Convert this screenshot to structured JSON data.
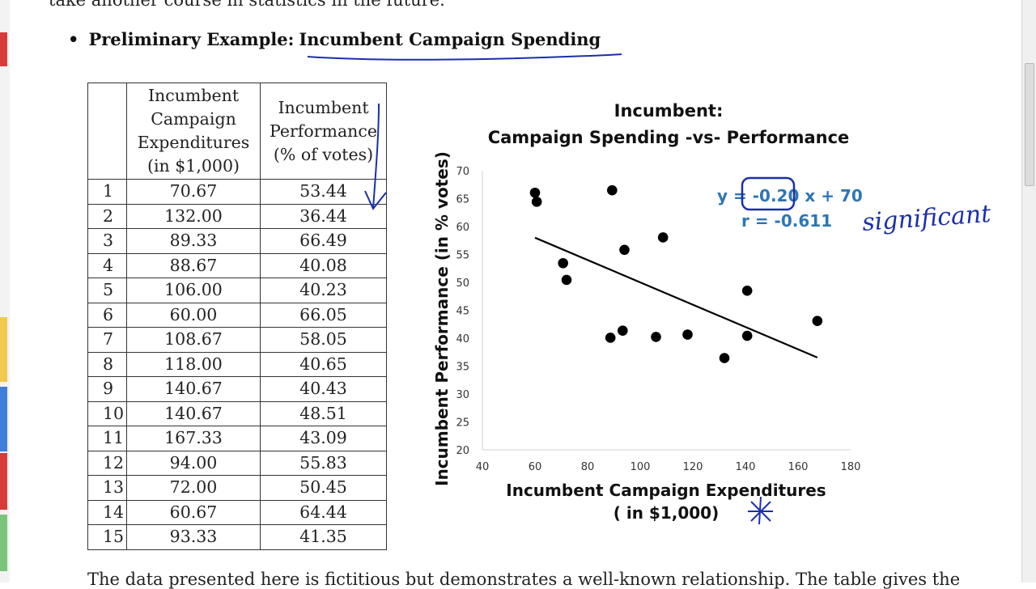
{
  "document": {
    "top_fragment": "take another course in statistics in the future.",
    "heading_label": "Preliminary Example:",
    "heading_topic": "Incumbent Campaign Spending",
    "bottom_fragment": "The data presented here is fictitious but demonstrates a well-known relationship. The table gives the"
  },
  "table": {
    "headers": {
      "index": "",
      "expenditures": [
        "Incumbent",
        "Campaign",
        "Expenditures",
        "(in $1,000)"
      ],
      "performance": [
        "Incumbent",
        "Performance",
        "(% of votes)"
      ]
    },
    "rows": [
      {
        "n": "1",
        "exp": "70.67",
        "perf": "53.44"
      },
      {
        "n": "2",
        "exp": "132.00",
        "perf": "36.44"
      },
      {
        "n": "3",
        "exp": "89.33",
        "perf": "66.49"
      },
      {
        "n": "4",
        "exp": "88.67",
        "perf": "40.08"
      },
      {
        "n": "5",
        "exp": "106.00",
        "perf": "40.23"
      },
      {
        "n": "6",
        "exp": "60.00",
        "perf": "66.05"
      },
      {
        "n": "7",
        "exp": "108.67",
        "perf": "58.05"
      },
      {
        "n": "8",
        "exp": "118.00",
        "perf": "40.65"
      },
      {
        "n": "9",
        "exp": "140.67",
        "perf": "40.43"
      },
      {
        "n": "10",
        "exp": "140.67",
        "perf": "48.51"
      },
      {
        "n": "11",
        "exp": "167.33",
        "perf": "43.09"
      },
      {
        "n": "12",
        "exp": "94.00",
        "perf": "55.83"
      },
      {
        "n": "13",
        "exp": "72.00",
        "perf": "50.45"
      },
      {
        "n": "14",
        "exp": "60.67",
        "perf": "64.44"
      },
      {
        "n": "15",
        "exp": "93.33",
        "perf": "41.35"
      }
    ]
  },
  "annotations": {
    "handwritten_word": "significant"
  },
  "colors": {
    "ink": "#1b2fa8",
    "equation": "#2e75b6",
    "points": "#000000"
  },
  "chart_data": {
    "type": "scatter",
    "title_lines": [
      "Incumbent:",
      "Campaign Spending -vs- Performance"
    ],
    "xlabel_lines": [
      "Incumbent Campaign Expenditures",
      "( in $1,000)"
    ],
    "ylabel": "Incumbent  Performance  (in % votes)",
    "xlim": [
      40,
      180
    ],
    "ylim": [
      20,
      70
    ],
    "xticks": [
      40,
      60,
      80,
      100,
      120,
      140,
      160,
      180
    ],
    "yticks": [
      20,
      25,
      30,
      35,
      40,
      45,
      50,
      55,
      60,
      65,
      70
    ],
    "x": [
      70.67,
      132.0,
      89.33,
      88.67,
      106.0,
      60.0,
      108.67,
      118.0,
      140.67,
      140.67,
      167.33,
      94.0,
      72.0,
      60.67,
      93.33
    ],
    "y": [
      53.44,
      36.44,
      66.49,
      40.08,
      40.23,
      66.05,
      58.05,
      40.65,
      40.43,
      48.51,
      43.09,
      55.83,
      50.45,
      64.44,
      41.35
    ],
    "trendline": {
      "slope": -0.2,
      "intercept": 70,
      "x_from": 60,
      "x_to": 167.33
    },
    "equation_parts": [
      "y = ",
      "-0.20",
      " x + 70"
    ],
    "r_text": "r = -0.611"
  }
}
